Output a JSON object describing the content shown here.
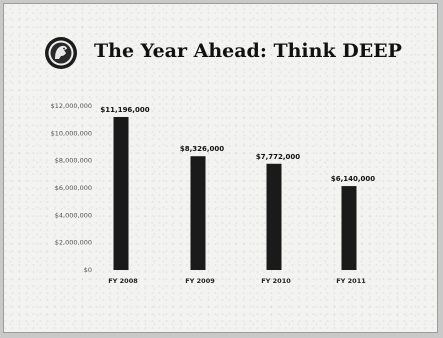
{
  "slide": {
    "title": "The Year Ahead: Think DEEP",
    "logo_icon": "seal-logo-icon"
  },
  "chart_data": {
    "type": "bar",
    "categories": [
      "FY 2008",
      "FY 2009",
      "FY 2010",
      "FY 2011"
    ],
    "values": [
      11196000,
      8326000,
      7772000,
      6140000
    ],
    "data_labels": [
      "$11,196,000",
      "$8,326,000",
      "$7,772,000",
      "$6,140,000"
    ],
    "y_tick_labels": [
      "$0",
      "$2,000,000",
      "$4,000,000",
      "$6,000,000",
      "$8,000,000",
      "$10,000,000",
      "$12,000,000"
    ],
    "ylim": [
      0,
      12000000
    ],
    "bar_color": "#1a1a1a",
    "grid": false
  }
}
